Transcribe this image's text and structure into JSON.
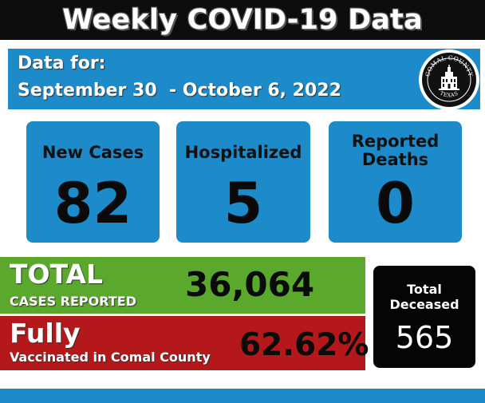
{
  "header": {
    "title": "Weekly COVID-19 Data"
  },
  "date_banner": {
    "label": "Data for:",
    "range": "September 30  - October 6, 2022"
  },
  "seal": {
    "top_text": "COMAL COUNTY",
    "bottom_text": "TEXAS"
  },
  "cards": {
    "new_cases": {
      "label": "New Cases",
      "value": "82"
    },
    "hospitalized": {
      "label": "Hospitalized",
      "value": "5"
    },
    "deaths": {
      "label_line1": "Reported",
      "label_line2": "Deaths",
      "value": "0"
    }
  },
  "total_cases": {
    "title": "TOTAL",
    "subtitle": "CASES REPORTED",
    "value": "36,064"
  },
  "vaccinated": {
    "title": "Fully",
    "subtitle": "Vaccinated in Comal County",
    "value": "62.62%"
  },
  "deceased": {
    "label_line1": "Total",
    "label_line2": "Deceased",
    "value": "565"
  },
  "colors": {
    "banner_blue": "#1d8ac9",
    "green": "#5aa82c",
    "red": "#b5181a",
    "black": "#0d0d0d"
  }
}
